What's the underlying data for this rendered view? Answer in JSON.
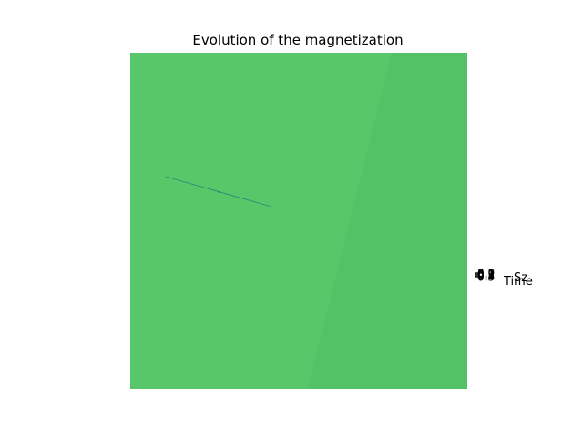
{
  "chart_data": {
    "type": "surface",
    "title": "Evolution of the magnetization",
    "xlabel": "Time",
    "ylabel": "Sz",
    "series": [
      {
        "values": [
          0.5,
          0.5,
          0.5,
          0.5,
          0.5
        ]
      }
    ],
    "z_tick_labels": [
      "0.0",
      "0.1",
      "0.2",
      "0.3",
      "0.4",
      "0.5"
    ],
    "grid": false,
    "colors": {
      "surface_main": "#57c769",
      "surface_shade": "#53c166",
      "line": "#2f8a79"
    }
  }
}
